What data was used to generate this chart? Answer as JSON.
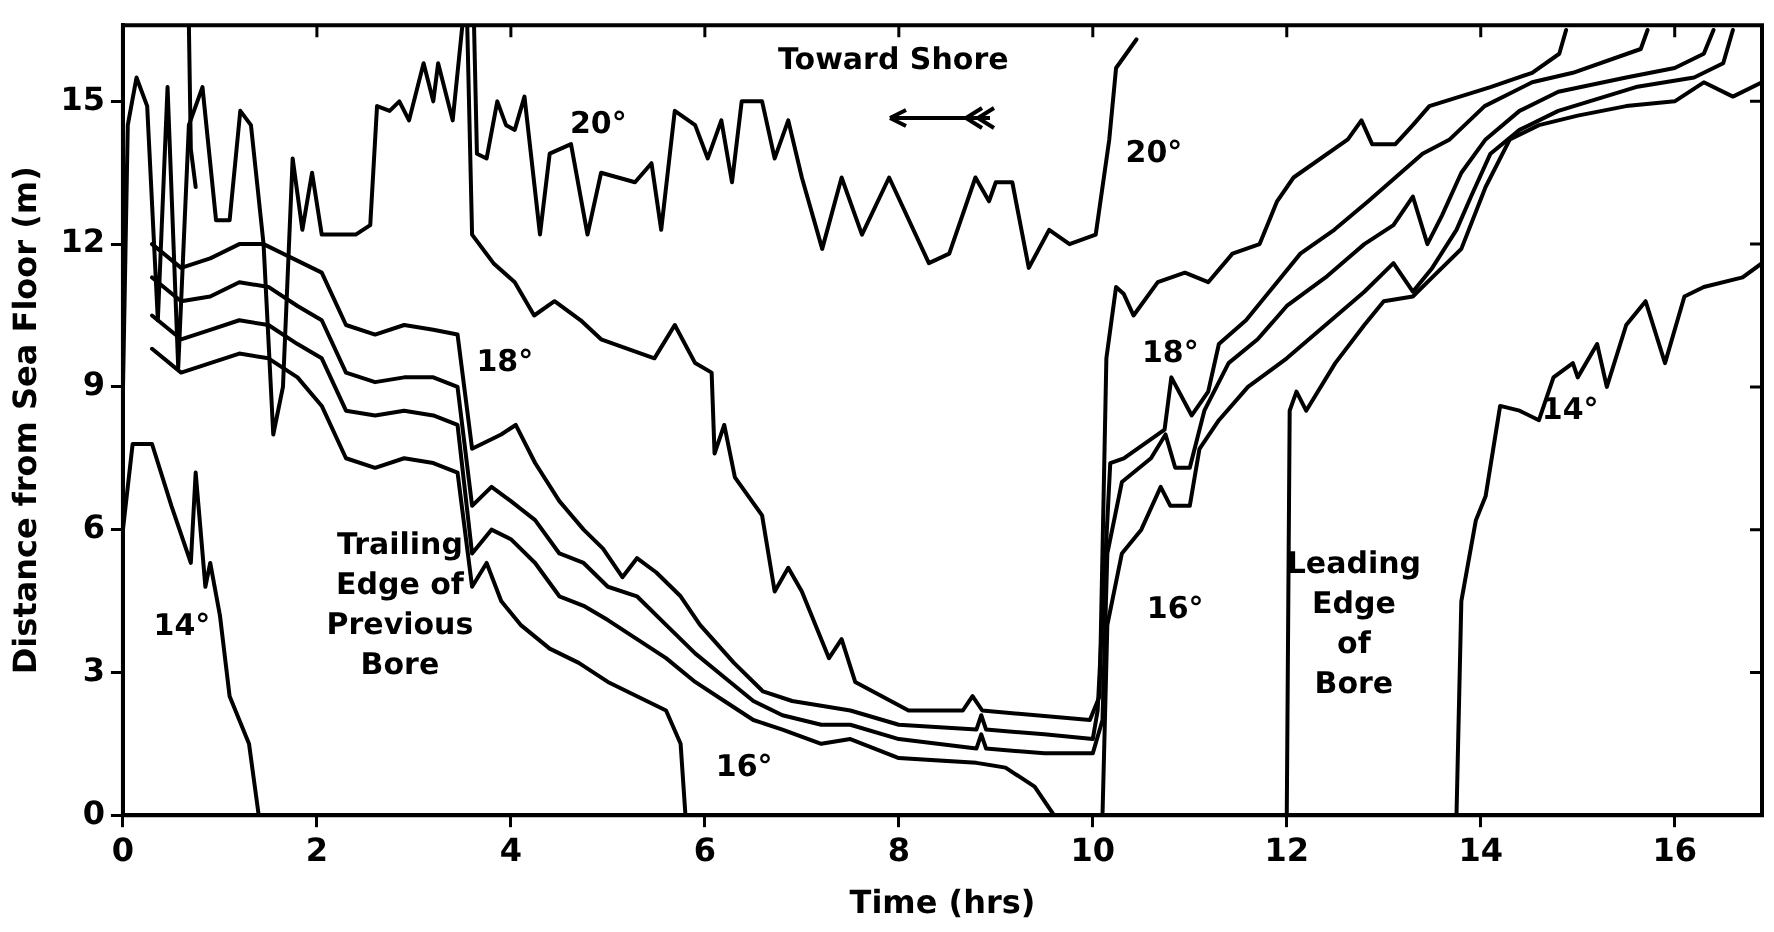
{
  "chart_data": {
    "type": "line",
    "xlabel": "Time (hrs)",
    "ylabel": "Distance from Sea Floor (m)",
    "xlim": [
      0,
      16.9
    ],
    "ylim": [
      0,
      16.6
    ],
    "xticks": [
      0,
      2,
      4,
      6,
      8,
      10,
      12,
      14,
      16
    ],
    "yticks": [
      0,
      3,
      6,
      9,
      12,
      15
    ],
    "grid": false,
    "legend": false,
    "marker": "none",
    "line_style": "solid",
    "series": [
      {
        "color": "#000000",
        "x": [
          0,
          0.05,
          0.14,
          0.25,
          0.36,
          0.46,
          0.57,
          0.68,
          0.82,
          0.96,
          1.1,
          1.21,
          1.32,
          1.45,
          1.55,
          1.65,
          1.75,
          1.85,
          1.95,
          2.05,
          2.4,
          2.55,
          2.62,
          2.75,
          2.85,
          2.95,
          3.1,
          3.2,
          3.25,
          3.4,
          3.5
        ],
        "values": [
          8.9,
          14.5,
          15.5,
          14.9,
          10.4,
          15.3,
          9.4,
          14.5,
          15.3,
          12.5,
          12.5,
          14.8,
          14.5,
          12.0,
          8.0,
          9.0,
          13.8,
          12.3,
          13.5,
          12.2,
          12.2,
          12.4,
          14.9,
          14.8,
          15.0,
          14.6,
          15.8,
          15.0,
          15.8,
          14.6,
          16.6
        ]
      },
      {
        "color": "#000000",
        "x": [
          0.68,
          0.7,
          0.75
        ],
        "values": [
          16.6,
          14.0,
          13.2
        ]
      },
      {
        "color": "#000000",
        "x": [
          3.62,
          3.65,
          3.75,
          3.86,
          3.95,
          4.04,
          4.14,
          4.3,
          4.4,
          4.62,
          4.79,
          4.93,
          5.28,
          5.45,
          5.55,
          5.69,
          5.9,
          6.03,
          6.17,
          6.28,
          6.38,
          6.59,
          6.72,
          6.86,
          7.0,
          7.21,
          7.41,
          7.62,
          7.9,
          8.31,
          8.52,
          8.79,
          8.93,
          9.0,
          9.17,
          9.34,
          9.55,
          9.76,
          10.03,
          10.17,
          10.24,
          10.45
        ],
        "values": [
          16.6,
          13.9,
          13.8,
          15.0,
          14.5,
          14.4,
          15.1,
          12.2,
          13.9,
          14.1,
          12.2,
          13.5,
          13.3,
          13.7,
          12.3,
          14.8,
          14.5,
          13.8,
          14.6,
          13.3,
          15.0,
          15.0,
          13.8,
          14.6,
          13.4,
          11.9,
          13.4,
          12.2,
          13.4,
          11.6,
          11.8,
          13.4,
          12.9,
          13.3,
          13.3,
          11.5,
          12.3,
          12.0,
          12.2,
          14.2,
          15.7,
          16.3
        ]
      },
      {
        "color": "#000000",
        "x": [
          3.55,
          3.6,
          3.82,
          4.04,
          4.24,
          4.45,
          4.72,
          4.93,
          5.48,
          5.69,
          5.9,
          6.07,
          6.1,
          6.2,
          6.31,
          6.59,
          6.72,
          6.86,
          7.0,
          7.28,
          7.41,
          7.55,
          8.1,
          8.66,
          8.76,
          8.86,
          9.97,
          10.07,
          10.14,
          10.24,
          10.32,
          10.42,
          10.67,
          10.95,
          11.19,
          11.44,
          11.72,
          11.9,
          12.07,
          12.63,
          12.77,
          12.88,
          13.12,
          13.3,
          13.47,
          14.1,
          14.53,
          14.81,
          14.88
        ],
        "values": [
          16.6,
          12.2,
          11.6,
          11.2,
          10.5,
          10.8,
          10.4,
          10.0,
          9.6,
          10.3,
          9.5,
          9.3,
          7.6,
          8.2,
          7.1,
          6.3,
          4.7,
          5.2,
          4.7,
          3.3,
          3.7,
          2.8,
          2.2,
          2.2,
          2.5,
          2.2,
          2.0,
          2.5,
          9.6,
          11.1,
          10.95,
          10.5,
          11.2,
          11.4,
          11.2,
          11.8,
          12.0,
          12.9,
          13.4,
          14.2,
          14.6,
          14.1,
          14.1,
          14.5,
          14.9,
          15.3,
          15.6,
          16.0,
          16.5
        ]
      },
      {
        "color": "#000000",
        "x": [
          0.3,
          0.6,
          0.9,
          1.2,
          1.45,
          1.75,
          2.05,
          2.3,
          2.6,
          2.9,
          3.2,
          3.45,
          3.6,
          3.9,
          4.05,
          4.25,
          4.5,
          4.75,
          4.95,
          5.15,
          5.3,
          5.5,
          5.75,
          5.95,
          6.3,
          6.6,
          6.9,
          7.2,
          7.5,
          8.0,
          8.8,
          8.85,
          8.9,
          9.5,
          10.0,
          10.05,
          10.18,
          10.32,
          10.74,
          10.81,
          11.02,
          11.19,
          11.3,
          11.58,
          11.86,
          12.14,
          12.49,
          12.84,
          13.12,
          13.4,
          13.68,
          14.04,
          14.53,
          14.95,
          15.65,
          15.72
        ],
        "values": [
          12.0,
          11.5,
          11.7,
          12.0,
          12.0,
          11.7,
          11.4,
          10.3,
          10.1,
          10.3,
          10.2,
          10.1,
          7.7,
          8.0,
          8.2,
          7.4,
          6.6,
          6.0,
          5.6,
          5.0,
          5.4,
          5.1,
          4.6,
          4.0,
          3.2,
          2.6,
          2.4,
          2.3,
          2.2,
          1.9,
          1.8,
          2.1,
          1.8,
          1.7,
          1.6,
          2.2,
          7.4,
          7.5,
          8.1,
          9.2,
          8.4,
          8.9,
          9.9,
          10.4,
          11.1,
          11.8,
          12.3,
          12.9,
          13.4,
          13.9,
          14.2,
          14.9,
          15.4,
          15.6,
          16.1,
          16.5
        ]
      },
      {
        "color": "#000000",
        "x": [
          0.3,
          0.6,
          0.9,
          1.2,
          1.5,
          1.8,
          2.05,
          2.3,
          2.6,
          2.9,
          3.2,
          3.45,
          3.6,
          3.8,
          4.0,
          4.25,
          4.5,
          4.75,
          5.0,
          5.3,
          5.6,
          5.9,
          6.2,
          6.5,
          6.8,
          7.2,
          7.5,
          8.0,
          8.8,
          8.85,
          8.9,
          9.5,
          10.0,
          10.1,
          10.15,
          10.3,
          10.6,
          10.75,
          10.85,
          11.0,
          11.15,
          11.4,
          11.7,
          12.0,
          12.4,
          12.8,
          13.1,
          13.3,
          13.45,
          13.6,
          13.8,
          14.05,
          14.4,
          14.8,
          15.5,
          16.0,
          16.3,
          16.4
        ],
        "values": [
          11.3,
          10.8,
          10.9,
          11.2,
          11.1,
          10.7,
          10.4,
          9.3,
          9.1,
          9.2,
          9.2,
          9.0,
          6.5,
          6.9,
          6.6,
          6.2,
          5.5,
          5.3,
          4.8,
          4.6,
          4.0,
          3.4,
          2.9,
          2.4,
          2.1,
          1.9,
          1.9,
          1.6,
          1.4,
          1.7,
          1.4,
          1.3,
          1.3,
          2.0,
          5.5,
          7.0,
          7.5,
          8.0,
          7.3,
          7.3,
          8.5,
          9.5,
          10.0,
          10.7,
          11.3,
          12.0,
          12.4,
          13.0,
          12.0,
          12.6,
          13.5,
          14.2,
          14.8,
          15.2,
          15.5,
          15.7,
          16.0,
          16.5
        ]
      },
      {
        "color": "#000000",
        "x": [
          0.3,
          0.6,
          0.9,
          1.2,
          1.5,
          1.8,
          2.05,
          2.3,
          2.6,
          2.9,
          3.2,
          3.45,
          3.6,
          3.8,
          4.0,
          4.25,
          4.5,
          4.75,
          5.0,
          5.3,
          5.6,
          5.9,
          6.2,
          6.5,
          6.8,
          7.2,
          7.5,
          8.0,
          8.8,
          9.1,
          9.4,
          9.6
        ],
        "values": [
          10.5,
          10.0,
          10.2,
          10.4,
          10.3,
          9.9,
          9.6,
          8.5,
          8.4,
          8.5,
          8.4,
          8.2,
          5.5,
          6.0,
          5.8,
          5.3,
          4.6,
          4.4,
          4.1,
          3.7,
          3.3,
          2.8,
          2.4,
          2.0,
          1.8,
          1.5,
          1.6,
          1.2,
          1.1,
          1.0,
          0.6,
          0
        ]
      },
      {
        "color": "#000000",
        "x": [
          10.1,
          10.15,
          10.3,
          10.5,
          10.7,
          10.8,
          11.0,
          11.1,
          11.3,
          11.6,
          12.0,
          12.4,
          12.8,
          13.1,
          13.3,
          13.5,
          13.75,
          13.9,
          14.1,
          14.4,
          14.8,
          15.6,
          16.2,
          16.5,
          16.6
        ],
        "values": [
          0,
          4.0,
          5.5,
          6.0,
          6.9,
          6.5,
          6.5,
          7.7,
          8.3,
          9.0,
          9.6,
          10.3,
          11.0,
          11.6,
          11.0,
          11.5,
          12.3,
          13.0,
          13.9,
          14.4,
          14.8,
          15.3,
          15.5,
          15.8,
          16.5
        ]
      },
      {
        "color": "#000000",
        "x": [
          0.3,
          0.6,
          0.9,
          1.2,
          1.5,
          1.8,
          2.05,
          2.3,
          2.6,
          2.9,
          3.2,
          3.45,
          3.6,
          3.75,
          3.9,
          4.1,
          4.4,
          4.7,
          5.0,
          5.3,
          5.6,
          5.75,
          5.8
        ],
        "values": [
          9.8,
          9.3,
          9.5,
          9.7,
          9.6,
          9.2,
          8.6,
          7.5,
          7.3,
          7.5,
          7.4,
          7.2,
          4.8,
          5.3,
          4.5,
          4.0,
          3.5,
          3.2,
          2.8,
          2.5,
          2.2,
          1.5,
          0
        ]
      },
      {
        "color": "#000000",
        "x": [
          12.0,
          12.03,
          12.1,
          12.2,
          12.5,
          12.8,
          13.0,
          13.3,
          13.5,
          13.8,
          14.05,
          14.3,
          14.6,
          15.0,
          15.5,
          16.0,
          16.3,
          16.6,
          16.9
        ],
        "values": [
          0,
          8.5,
          8.9,
          8.5,
          9.5,
          10.3,
          10.8,
          10.9,
          11.3,
          11.9,
          13.2,
          14.2,
          14.5,
          14.7,
          14.9,
          15.0,
          15.4,
          15.1,
          15.4
        ]
      },
      {
        "color": "#000000",
        "x": [
          0,
          0.1,
          0.3,
          0.5,
          0.7,
          0.75,
          0.85,
          0.9,
          1.0,
          1.1,
          1.2,
          1.3,
          1.4
        ],
        "values": [
          6.0,
          7.8,
          7.8,
          6.5,
          5.3,
          7.2,
          4.8,
          5.3,
          4.2,
          2.5,
          2.0,
          1.5,
          0
        ]
      },
      {
        "color": "#000000",
        "x": [
          13.75,
          13.8,
          13.95,
          14.05,
          14.2,
          14.4,
          14.6,
          14.75,
          14.95,
          15.0,
          15.2,
          15.3,
          15.5,
          15.7,
          15.9,
          16.1,
          16.3,
          16.7,
          16.9
        ],
        "values": [
          0,
          4.5,
          6.2,
          6.7,
          8.6,
          8.5,
          8.3,
          9.2,
          9.5,
          9.2,
          9.9,
          9.0,
          10.3,
          10.8,
          9.5,
          10.9,
          11.1,
          11.3,
          11.6
        ]
      }
    ],
    "annotations": [
      "Toward Shore",
      "20°",
      "20°",
      "18°",
      "18°",
      "16°",
      "16°",
      "14°",
      "14°",
      "Trailing\nEdge of\nPrevious\nBore",
      "Leading\nEdge\nof\nBore"
    ]
  }
}
